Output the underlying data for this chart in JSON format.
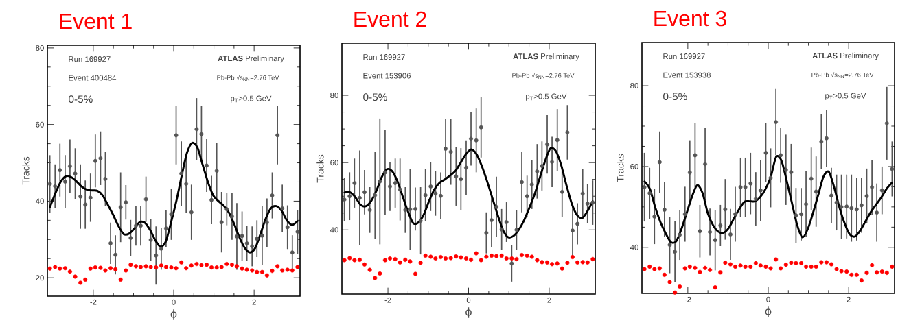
{
  "chart_data": [
    {
      "type": "scatter",
      "title": "Event 1",
      "xlabel": "ϕ",
      "ylabel": "Tracks",
      "annotations": [
        "Run 169927",
        "Event 400484",
        "0-5%",
        "**ATLAS** Preliminary",
        "Pb-Pb √s$_{NN}$=2.76 TeV",
        "p$_{T}$>0.5 GeV"
      ],
      "xlim": [
        -3.1416,
        3.1416
      ],
      "ylim": [
        15.2,
        80.7
      ],
      "xticks": [
        -2,
        0,
        2
      ],
      "yticks": [
        20,
        40,
        60,
        80
      ],
      "x": [
        -3.08,
        -2.95,
        -2.83,
        -2.7,
        -2.58,
        -2.45,
        -2.32,
        -2.2,
        -2.07,
        -1.95,
        -1.82,
        -1.7,
        -1.57,
        -1.45,
        -1.32,
        -1.19,
        -1.07,
        -0.94,
        -0.82,
        -0.69,
        -0.57,
        -0.44,
        -0.31,
        -0.19,
        -0.06,
        0.06,
        0.19,
        0.31,
        0.44,
        0.57,
        0.69,
        0.82,
        0.94,
        1.07,
        1.19,
        1.32,
        1.45,
        1.57,
        1.7,
        1.82,
        1.95,
        2.07,
        2.2,
        2.32,
        2.45,
        2.58,
        2.7,
        2.83,
        2.95,
        3.08
      ],
      "series": [
        {
          "marker": "none",
          "color": "#555555",
          "values": [
            44.5,
            43.9,
            48.1,
            45.1,
            49.1,
            47.2,
            41.2,
            39.1,
            40.9,
            50.5,
            51.2,
            45.8,
            29.0,
            26.0,
            38.4,
            39.7,
            30.4,
            33.6,
            33.6,
            40.5,
            29.9,
            25.8,
            27.6,
            32.9,
            36.6,
            57.2,
            47.2,
            44.5,
            37.1,
            58.8,
            57.5,
            49.3,
            40.3,
            47.9,
            34.5,
            37.9,
            36.0,
            30.8,
            30.9,
            29.0,
            28.2,
            30.2,
            31.0,
            34.4,
            41.5,
            57.2,
            38.1,
            33.2,
            26.6,
            32.0
          ],
          "errors": [
            7.5,
            5.7,
            6.9,
            6.9,
            7.0,
            6.6,
            8.4,
            6.3,
            6.3,
            6.9,
            7.0,
            7.0,
            5.4,
            5.1,
            9.1,
            4.5,
            4.7,
            5.2,
            5.2,
            5.9,
            5.4,
            7.6,
            5.5,
            4.8,
            6.7,
            7.6,
            8.4,
            7.5,
            7.2,
            8.1,
            7.4,
            6.9,
            6.3,
            7.3,
            7.9,
            4.2,
            6.1,
            8.7,
            6.4,
            4.5,
            5.2,
            4.8,
            7.7,
            6.3,
            6.0,
            7.6,
            6.2,
            5.7,
            4.5,
            5.7
          ]
        },
        {
          "type": "line",
          "marker": "none",
          "color": "#000000",
          "x": [
            -3.076,
            -2.945,
            -2.814,
            -2.683,
            -2.553,
            -2.422,
            -2.291,
            -2.16,
            -2.029,
            -1.898,
            -1.767,
            -1.636,
            -1.505,
            -1.374,
            -1.244,
            -1.113,
            -0.982,
            -0.851,
            -0.72,
            -0.589,
            -0.458,
            -0.327,
            -0.196,
            -0.065,
            0.065,
            0.196,
            0.327,
            0.458,
            0.589,
            0.72,
            0.851,
            0.982,
            1.113,
            1.244,
            1.374,
            1.505,
            1.636,
            1.767,
            1.898,
            2.029,
            2.16,
            2.291,
            2.422,
            2.553,
            2.683,
            2.814,
            2.945,
            3.076
          ],
          "values": [
            38.5,
            42.0,
            45.0,
            46.5,
            46.3,
            45.2,
            43.8,
            43.0,
            42.8,
            42.7,
            41.5,
            39.0,
            36.4,
            33.5,
            31.4,
            31.5,
            32.8,
            34.5,
            34.4,
            32.5,
            29.8,
            28.1,
            29.5,
            34.5,
            40.0,
            46.5,
            52.5,
            55.2,
            54.0,
            49.5,
            45.0,
            41.5,
            40.0,
            38.8,
            37.0,
            34.0,
            30.5,
            27.8,
            26.6,
            27.8,
            31.5,
            35.5,
            38.2,
            38.7,
            37.5,
            35.0,
            33.8,
            34.8
          ]
        },
        {
          "marker": "circle",
          "color": "#ff0000",
          "values": [
            22.4,
            22.8,
            22.4,
            22.5,
            21.6,
            20.3,
            18.7,
            19.5,
            22.4,
            22.7,
            22.6,
            21.9,
            22.5,
            22.2,
            19.5,
            21.9,
            23.4,
            23.0,
            22.8,
            23.0,
            22.8,
            22.7,
            23.2,
            22.8,
            22.7,
            22.5,
            24.0,
            22.5,
            23.2,
            23.6,
            23.3,
            23.4,
            22.7,
            22.7,
            22.8,
            23.6,
            23.4,
            23.0,
            22.4,
            22.1,
            21.9,
            21.5,
            21.5,
            20.6,
            21.8,
            23.0,
            21.9,
            22.1,
            21.9,
            22.8
          ]
        }
      ]
    },
    {
      "type": "scatter",
      "title": "Event 2",
      "xlabel": "ϕ",
      "ylabel": "Tracks",
      "annotations": [
        "Run 169927",
        "Event 153906",
        "0-5%",
        "**ATLAS** Preliminary",
        "Pb-Pb √s$_{NN}$=2.76 TeV",
        "p$_{T}$>0.5 GeV"
      ],
      "xlim": [
        -3.1416,
        3.1416
      ],
      "ylim": [
        20.9,
        95.5
      ],
      "xticks": [
        -2,
        0,
        2
      ],
      "yticks": [
        40,
        60,
        80
      ],
      "x": [
        -3.08,
        -2.95,
        -2.83,
        -2.7,
        -2.58,
        -2.45,
        -2.32,
        -2.2,
        -2.07,
        -1.95,
        -1.82,
        -1.7,
        -1.57,
        -1.45,
        -1.32,
        -1.19,
        -1.07,
        -0.94,
        -0.82,
        -0.69,
        -0.57,
        -0.44,
        -0.31,
        -0.19,
        -0.06,
        0.06,
        0.19,
        0.31,
        0.44,
        0.57,
        0.69,
        0.82,
        0.94,
        1.07,
        1.19,
        1.32,
        1.45,
        1.57,
        1.7,
        1.82,
        1.95,
        2.07,
        2.2,
        2.32,
        2.45,
        2.58,
        2.7,
        2.83,
        2.95,
        3.08
      ],
      "series": [
        {
          "marker": "none",
          "color": "#555555",
          "values": [
            49.0,
            50.0,
            53.9,
            49.5,
            51.2,
            45.9,
            50.3,
            54.4,
            57.1,
            52.9,
            53.9,
            52.0,
            45.9,
            46.1,
            46.2,
            42.7,
            50.3,
            52.9,
            50.8,
            50.1,
            64.1,
            63.2,
            55.9,
            55.1,
            58.5,
            67.1,
            66.6,
            70.5,
            39.1,
            42.9,
            46.8,
            40.1,
            42.3,
            30.0,
            40.0,
            54.2,
            50.0,
            53.5,
            57.4,
            59.0,
            65.4,
            60.2,
            66.7,
            51.3,
            69.0,
            39.8,
            41.8,
            50.8,
            47.8,
            48.1
          ],
          "errors": [
            6.4,
            7.1,
            7.3,
            14.1,
            6.6,
            6.8,
            12.9,
            18.7,
            12.6,
            7.3,
            7.3,
            9.2,
            6.8,
            12.1,
            6.4,
            10.0,
            7.8,
            7.3,
            6.6,
            7.0,
            9.0,
            9.8,
            8.7,
            9.2,
            8.1,
            8.0,
            9.5,
            9.0,
            6.1,
            8.1,
            9.0,
            6.1,
            5.9,
            5.4,
            5.9,
            9.0,
            6.1,
            7.3,
            8.1,
            7.3,
            8.7,
            7.5,
            9.2,
            7.5,
            8.1,
            8.1,
            6.1,
            7.3,
            5.9,
            6.6
          ]
        },
        {
          "type": "line",
          "marker": "none",
          "color": "#000000",
          "x": [
            -3.076,
            -2.945,
            -2.814,
            -2.683,
            -2.553,
            -2.422,
            -2.291,
            -2.16,
            -2.029,
            -1.898,
            -1.767,
            -1.636,
            -1.505,
            -1.374,
            -1.244,
            -1.113,
            -0.982,
            -0.851,
            -0.72,
            -0.589,
            -0.458,
            -0.327,
            -0.196,
            -0.065,
            0.065,
            0.196,
            0.327,
            0.458,
            0.589,
            0.72,
            0.851,
            0.982,
            1.113,
            1.244,
            1.374,
            1.505,
            1.636,
            1.767,
            1.898,
            2.029,
            2.16,
            2.291,
            2.422,
            2.553,
            2.683,
            2.814,
            2.945,
            3.076
          ],
          "values": [
            51.1,
            51.2,
            49.8,
            47.5,
            47.0,
            48.5,
            51.5,
            55.5,
            58.0,
            57.5,
            54.5,
            50.0,
            45.5,
            42.0,
            42.2,
            44.5,
            48.5,
            52.0,
            54.0,
            55.0,
            56.2,
            57.5,
            60.0,
            62.5,
            63.9,
            62.5,
            59.0,
            54.5,
            49.5,
            44.5,
            40.0,
            37.8,
            38.2,
            40.0,
            42.8,
            46.5,
            50.5,
            55.5,
            60.5,
            64.2,
            63.5,
            59.5,
            53.5,
            48.0,
            44.5,
            43.5,
            45.5,
            48.5
          ]
        },
        {
          "marker": "circle",
          "color": "#ff0000",
          "values": [
            31.0,
            31.6,
            31.0,
            31.1,
            29.7,
            28.1,
            25.7,
            27.0,
            31.0,
            31.5,
            31.3,
            30.3,
            31.1,
            30.6,
            26.9,
            30.2,
            32.3,
            32.0,
            31.5,
            31.9,
            31.5,
            31.6,
            32.1,
            31.8,
            31.5,
            31.1,
            33.0,
            31.0,
            32.0,
            32.3,
            32.2,
            32.3,
            31.5,
            31.5,
            31.3,
            32.5,
            32.3,
            32.0,
            31.0,
            30.4,
            30.3,
            29.8,
            30.0,
            28.5,
            30.2,
            31.9,
            30.3,
            30.4,
            30.3,
            31.3
          ]
        }
      ]
    },
    {
      "type": "scatter",
      "title": "Event 3",
      "xlabel": "ϕ",
      "ylabel": "Tracks",
      "annotations": [
        "Run 169927",
        "Event 153938",
        "0-5%",
        "**ATLAS** Preliminary",
        "Pb-Pb √s$_{NN}$=2.76 TeV",
        "p$_{T}$>0.5 GeV"
      ],
      "xlim": [
        -3.1416,
        3.1416
      ],
      "ylim": [
        28.6,
        90.7
      ],
      "xticks": [
        -2,
        0,
        2
      ],
      "yticks": [
        40,
        60,
        80
      ],
      "x": [
        -3.08,
        -2.95,
        -2.83,
        -2.7,
        -2.58,
        -2.45,
        -2.32,
        -2.2,
        -2.07,
        -1.95,
        -1.82,
        -1.7,
        -1.57,
        -1.45,
        -1.32,
        -1.19,
        -1.07,
        -0.94,
        -0.82,
        -0.69,
        -0.57,
        -0.44,
        -0.31,
        -0.19,
        -0.06,
        0.06,
        0.19,
        0.31,
        0.44,
        0.57,
        0.69,
        0.82,
        0.94,
        1.07,
        1.19,
        1.32,
        1.45,
        1.57,
        1.7,
        1.82,
        1.95,
        2.07,
        2.2,
        2.32,
        2.45,
        2.58,
        2.7,
        2.83,
        2.95,
        3.08
      ],
      "series": [
        {
          "marker": "none",
          "color": "#555555",
          "values": [
            54.9,
            53.4,
            47.6,
            61.1,
            49.3,
            40.6,
            38.9,
            43.1,
            48.2,
            58.5,
            62.8,
            44.0,
            60.6,
            43.8,
            41.8,
            45.4,
            49.4,
            43.2,
            48.2,
            54.9,
            54.9,
            55.8,
            52.0,
            54.1,
            63.4,
            57.2,
            71.0,
            62.8,
            59.2,
            58.6,
            47.9,
            48.2,
            50.7,
            57.0,
            53.8,
            66.2,
            67.0,
            52.8,
            51.1,
            50.0,
            50.1,
            49.7,
            49.4,
            50.4,
            52.7,
            54.9,
            48.6,
            54.1,
            70.7,
            59.4
          ],
          "errors": [
            8.5,
            6.3,
            6.8,
            7.6,
            6.8,
            7.0,
            7.6,
            6.2,
            6.8,
            8.0,
            7.9,
            6.5,
            9.0,
            5.8,
            7.5,
            5.1,
            7.5,
            6.3,
            6.8,
            7.3,
            7.3,
            7.6,
            6.6,
            7.6,
            7.3,
            7.3,
            8.2,
            6.8,
            8.7,
            7.0,
            6.8,
            6.5,
            8.2,
            7.7,
            8.7,
            6.8,
            7.0,
            6.9,
            6.9,
            8.0,
            7.9,
            8.3,
            7.7,
            6.8,
            6.8,
            6.8,
            7.2,
            5.9,
            9.0,
            6.8
          ]
        },
        {
          "type": "line",
          "marker": "none",
          "color": "#000000",
          "x": [
            -3.076,
            -2.945,
            -2.814,
            -2.683,
            -2.553,
            -2.422,
            -2.291,
            -2.16,
            -2.029,
            -1.898,
            -1.767,
            -1.636,
            -1.505,
            -1.374,
            -1.244,
            -1.113,
            -0.982,
            -0.851,
            -0.72,
            -0.589,
            -0.458,
            -0.327,
            -0.196,
            -0.065,
            0.065,
            0.196,
            0.327,
            0.458,
            0.589,
            0.72,
            0.851,
            0.982,
            1.113,
            1.244,
            1.374,
            1.505,
            1.636,
            1.767,
            1.898,
            2.029,
            2.16,
            2.291,
            2.422,
            2.553,
            2.683,
            2.814,
            2.945,
            3.076
          ],
          "values": [
            56.3,
            54.5,
            50.0,
            46.3,
            43.5,
            41.3,
            41.5,
            44.5,
            48.5,
            52.5,
            55.4,
            53.5,
            48.5,
            45.5,
            43.9,
            43.6,
            44.8,
            47.2,
            49.5,
            51.3,
            51.4,
            51.4,
            52.5,
            54.5,
            57.5,
            62.4,
            61.5,
            56.5,
            51.0,
            45.5,
            42.5,
            44.5,
            48.5,
            53.0,
            57.5,
            58.7,
            55.0,
            50.0,
            46.0,
            43.2,
            42.7,
            44.2,
            46.5,
            48.8,
            50.6,
            52.4,
            54.5,
            56.0
          ]
        },
        {
          "marker": "circle",
          "color": "#ff0000",
          "values": [
            34.6,
            35.2,
            34.6,
            34.8,
            33.2,
            31.4,
            28.8,
            30.3,
            34.8,
            35.2,
            34.9,
            33.9,
            34.9,
            34.4,
            30.1,
            33.8,
            36.2,
            35.8,
            35.2,
            35.5,
            35.2,
            35.2,
            36.1,
            35.5,
            35.2,
            34.8,
            37.0,
            34.8,
            35.7,
            36.2,
            36.1,
            36.1,
            35.2,
            35.2,
            35.2,
            36.3,
            36.3,
            35.8,
            34.6,
            34.1,
            34.0,
            33.2,
            33.2,
            31.8,
            33.7,
            35.6,
            33.8,
            34.0,
            33.7,
            35.2
          ]
        }
      ]
    }
  ]
}
